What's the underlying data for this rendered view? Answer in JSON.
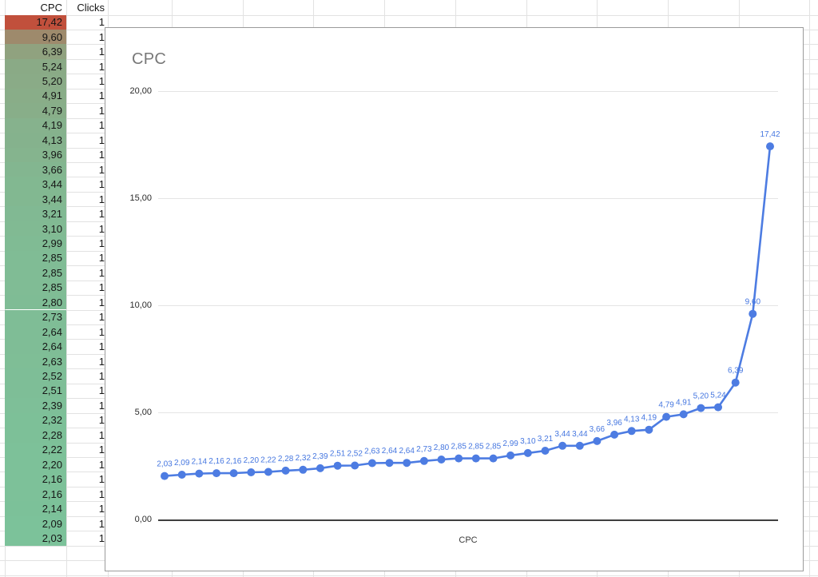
{
  "sheet": {
    "headers": {
      "cpc": "CPC",
      "clicks": "Clicks"
    },
    "rows": [
      {
        "cpc": "17,42",
        "clicks": "1"
      },
      {
        "cpc": "9,60",
        "clicks": "1"
      },
      {
        "cpc": "6,39",
        "clicks": "1"
      },
      {
        "cpc": "5,24",
        "clicks": "1"
      },
      {
        "cpc": "5,20",
        "clicks": "1"
      },
      {
        "cpc": "4,91",
        "clicks": "1"
      },
      {
        "cpc": "4,79",
        "clicks": "1"
      },
      {
        "cpc": "4,19",
        "clicks": "1"
      },
      {
        "cpc": "4,13",
        "clicks": "1"
      },
      {
        "cpc": "3,96",
        "clicks": "1"
      },
      {
        "cpc": "3,66",
        "clicks": "1"
      },
      {
        "cpc": "3,44",
        "clicks": "1"
      },
      {
        "cpc": "3,44",
        "clicks": "1"
      },
      {
        "cpc": "3,21",
        "clicks": "1"
      },
      {
        "cpc": "3,10",
        "clicks": "1"
      },
      {
        "cpc": "2,99",
        "clicks": "1"
      },
      {
        "cpc": "2,85",
        "clicks": "1"
      },
      {
        "cpc": "2,85",
        "clicks": "1"
      },
      {
        "cpc": "2,85",
        "clicks": "1"
      },
      {
        "cpc": "2,80",
        "clicks": "1"
      },
      {
        "cpc": "2,73",
        "clicks": "1"
      },
      {
        "cpc": "2,64",
        "clicks": "1"
      },
      {
        "cpc": "2,64",
        "clicks": "1"
      },
      {
        "cpc": "2,63",
        "clicks": "1"
      },
      {
        "cpc": "2,52",
        "clicks": "1"
      },
      {
        "cpc": "2,51",
        "clicks": "1"
      },
      {
        "cpc": "2,39",
        "clicks": "1"
      },
      {
        "cpc": "2,32",
        "clicks": "1"
      },
      {
        "cpc": "2,28",
        "clicks": "1"
      },
      {
        "cpc": "2,22",
        "clicks": "1"
      },
      {
        "cpc": "2,20",
        "clicks": "1"
      },
      {
        "cpc": "2,16",
        "clicks": "1"
      },
      {
        "cpc": "2,16",
        "clicks": "1"
      },
      {
        "cpc": "2,14",
        "clicks": "1"
      },
      {
        "cpc": "2,09",
        "clicks": "1"
      },
      {
        "cpc": "2,03",
        "clicks": "1"
      }
    ],
    "color_scale": {
      "min_color": "#7CC29A",
      "max_color": "#C1503C"
    }
  },
  "chart_data": {
    "type": "line",
    "title": "CPC",
    "xlabel": "CPC",
    "ylabel": "",
    "ylim": [
      0,
      20
    ],
    "grid": true,
    "legend": "none",
    "yticks": [
      {
        "value": 20,
        "label": "20,00"
      },
      {
        "value": 15,
        "label": "15,00"
      },
      {
        "value": 10,
        "label": "10,00"
      },
      {
        "value": 5,
        "label": "5,00"
      },
      {
        "value": 0,
        "label": "0,00"
      }
    ],
    "series": [
      {
        "name": "CPC",
        "values": [
          2.03,
          2.09,
          2.14,
          2.16,
          2.16,
          2.2,
          2.22,
          2.28,
          2.32,
          2.39,
          2.51,
          2.52,
          2.63,
          2.64,
          2.64,
          2.73,
          2.8,
          2.85,
          2.85,
          2.85,
          2.99,
          3.1,
          3.21,
          3.44,
          3.44,
          3.66,
          3.96,
          4.13,
          4.19,
          4.79,
          4.91,
          5.2,
          5.24,
          6.39,
          9.6,
          17.42
        ],
        "point_labels": [
          "2,03",
          "2,09",
          "2,14",
          "2,16",
          "2,16",
          "2,20",
          "2,22",
          "2,28",
          "2,32",
          "2,39",
          "2,51",
          "2,52",
          "2,63",
          "2,64",
          "2,64",
          "2,73",
          "2,80",
          "2,85",
          "2,85",
          "2,85",
          "2,99",
          "3,10",
          "3,21",
          "3,44",
          "3,44",
          "3,66",
          "3,96",
          "4,13",
          "4,19",
          "4,79",
          "4,91",
          "5,20",
          "5,24",
          "6,39",
          "9,60",
          "17,42"
        ]
      }
    ],
    "colors": {
      "line": "#4d7ce2",
      "point": "#4d7ce2",
      "data_label": "#4677e0",
      "title": "#787878",
      "gridline": "#e4e4e4",
      "axis": "#3f3f3f"
    }
  }
}
